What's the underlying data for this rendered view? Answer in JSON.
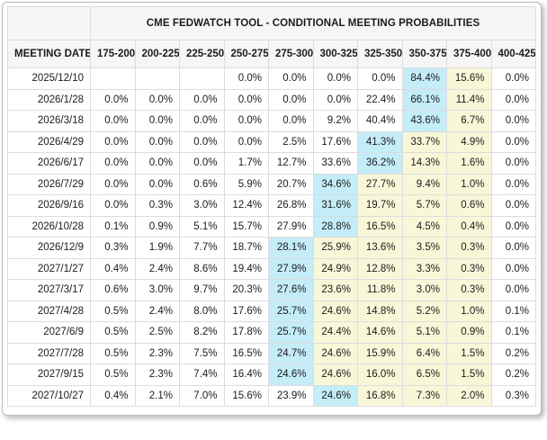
{
  "window": {
    "border_color": "#b3bec7"
  },
  "table": {
    "title": "CME FEDWATCH TOOL - CONDITIONAL MEETING PROBABILITIES",
    "columns": [
      "MEETING DATE",
      "175-200",
      "200-225",
      "225-250",
      "250-275",
      "275-300",
      "300-325",
      "325-350",
      "350-375",
      "375-400",
      "400-425"
    ],
    "colors": {
      "highlight_blue": "#c4edf8",
      "highlight_yellow": "#f8f8d9",
      "header_bg": "#f6f6f6",
      "grid_line": "#dcdcdc"
    },
    "rows": [
      {
        "date": "2025/12/10",
        "cells": [
          "",
          "",
          "",
          "0.0%",
          "0.0%",
          "0.0%",
          "0.0%",
          "84.4%",
          "15.6%",
          "0.0%"
        ],
        "highlights": [
          "",
          "",
          "",
          "",
          "",
          "",
          "",
          "blue",
          "yellow",
          ""
        ]
      },
      {
        "date": "2026/1/28",
        "cells": [
          "0.0%",
          "0.0%",
          "0.0%",
          "0.0%",
          "0.0%",
          "0.0%",
          "22.4%",
          "66.1%",
          "11.4%",
          "0.0%"
        ],
        "highlights": [
          "",
          "",
          "",
          "",
          "",
          "",
          "",
          "blue",
          "yellow",
          ""
        ]
      },
      {
        "date": "2026/3/18",
        "cells": [
          "0.0%",
          "0.0%",
          "0.0%",
          "0.0%",
          "0.0%",
          "9.2%",
          "40.4%",
          "43.6%",
          "6.7%",
          "0.0%"
        ],
        "highlights": [
          "",
          "",
          "",
          "",
          "",
          "",
          "",
          "blue",
          "yellow",
          ""
        ]
      },
      {
        "date": "2026/4/29",
        "cells": [
          "0.0%",
          "0.0%",
          "0.0%",
          "0.0%",
          "2.5%",
          "17.6%",
          "41.3%",
          "33.7%",
          "4.9%",
          "0.0%"
        ],
        "highlights": [
          "",
          "",
          "",
          "",
          "",
          "",
          "blue",
          "yellow",
          "yellow",
          ""
        ]
      },
      {
        "date": "2026/6/17",
        "cells": [
          "0.0%",
          "0.0%",
          "0.0%",
          "1.7%",
          "12.7%",
          "33.6%",
          "36.2%",
          "14.3%",
          "1.6%",
          "0.0%"
        ],
        "highlights": [
          "",
          "",
          "",
          "",
          "",
          "",
          "blue",
          "yellow",
          "yellow",
          ""
        ]
      },
      {
        "date": "2026/7/29",
        "cells": [
          "0.0%",
          "0.0%",
          "0.6%",
          "5.9%",
          "20.7%",
          "34.6%",
          "27.7%",
          "9.4%",
          "1.0%",
          "0.0%"
        ],
        "highlights": [
          "",
          "",
          "",
          "",
          "",
          "blue",
          "yellow",
          "yellow",
          "yellow",
          ""
        ]
      },
      {
        "date": "2026/9/16",
        "cells": [
          "0.0%",
          "0.3%",
          "3.0%",
          "12.4%",
          "26.8%",
          "31.6%",
          "19.7%",
          "5.7%",
          "0.6%",
          "0.0%"
        ],
        "highlights": [
          "",
          "",
          "",
          "",
          "",
          "blue",
          "yellow",
          "yellow",
          "yellow",
          ""
        ]
      },
      {
        "date": "2026/10/28",
        "cells": [
          "0.1%",
          "0.9%",
          "5.1%",
          "15.7%",
          "27.9%",
          "28.8%",
          "16.5%",
          "4.5%",
          "0.4%",
          "0.0%"
        ],
        "highlights": [
          "",
          "",
          "",
          "",
          "",
          "blue",
          "yellow",
          "yellow",
          "yellow",
          ""
        ]
      },
      {
        "date": "2026/12/9",
        "cells": [
          "0.3%",
          "1.9%",
          "7.7%",
          "18.7%",
          "28.1%",
          "25.9%",
          "13.6%",
          "3.5%",
          "0.3%",
          "0.0%"
        ],
        "highlights": [
          "",
          "",
          "",
          "",
          "blue",
          "yellow",
          "yellow",
          "yellow",
          "yellow",
          ""
        ]
      },
      {
        "date": "2027/1/27",
        "cells": [
          "0.4%",
          "2.4%",
          "8.6%",
          "19.4%",
          "27.9%",
          "24.9%",
          "12.8%",
          "3.3%",
          "0.3%",
          "0.0%"
        ],
        "highlights": [
          "",
          "",
          "",
          "",
          "blue",
          "yellow",
          "yellow",
          "yellow",
          "yellow",
          ""
        ]
      },
      {
        "date": "2027/3/17",
        "cells": [
          "0.6%",
          "3.0%",
          "9.7%",
          "20.3%",
          "27.6%",
          "23.6%",
          "11.8%",
          "3.0%",
          "0.3%",
          "0.0%"
        ],
        "highlights": [
          "",
          "",
          "",
          "",
          "blue",
          "yellow",
          "yellow",
          "yellow",
          "yellow",
          ""
        ]
      },
      {
        "date": "2027/4/28",
        "cells": [
          "0.5%",
          "2.4%",
          "8.0%",
          "17.6%",
          "25.7%",
          "24.6%",
          "14.8%",
          "5.2%",
          "1.0%",
          "0.1%"
        ],
        "highlights": [
          "",
          "",
          "",
          "",
          "blue",
          "yellow",
          "yellow",
          "yellow",
          "yellow",
          ""
        ]
      },
      {
        "date": "2027/6/9",
        "cells": [
          "0.5%",
          "2.5%",
          "8.2%",
          "17.8%",
          "25.7%",
          "24.4%",
          "14.6%",
          "5.1%",
          "0.9%",
          "0.1%"
        ],
        "highlights": [
          "",
          "",
          "",
          "",
          "blue",
          "yellow",
          "yellow",
          "yellow",
          "yellow",
          ""
        ]
      },
      {
        "date": "2027/7/28",
        "cells": [
          "0.5%",
          "2.3%",
          "7.5%",
          "16.5%",
          "24.7%",
          "24.6%",
          "15.9%",
          "6.4%",
          "1.5%",
          "0.2%"
        ],
        "highlights": [
          "",
          "",
          "",
          "",
          "blue",
          "yellow",
          "yellow",
          "yellow",
          "yellow",
          ""
        ]
      },
      {
        "date": "2027/9/15",
        "cells": [
          "0.5%",
          "2.3%",
          "7.4%",
          "16.4%",
          "24.6%",
          "24.6%",
          "16.0%",
          "6.5%",
          "1.5%",
          "0.2%"
        ],
        "highlights": [
          "",
          "",
          "",
          "",
          "blue",
          "yellow",
          "yellow",
          "yellow",
          "yellow",
          ""
        ]
      },
      {
        "date": "2027/10/27",
        "cells": [
          "0.4%",
          "2.1%",
          "7.0%",
          "15.6%",
          "23.9%",
          "24.6%",
          "16.8%",
          "7.3%",
          "2.0%",
          "0.3%"
        ],
        "highlights": [
          "",
          "",
          "",
          "",
          "",
          "blue",
          "yellow",
          "yellow",
          "yellow",
          ""
        ]
      }
    ]
  }
}
